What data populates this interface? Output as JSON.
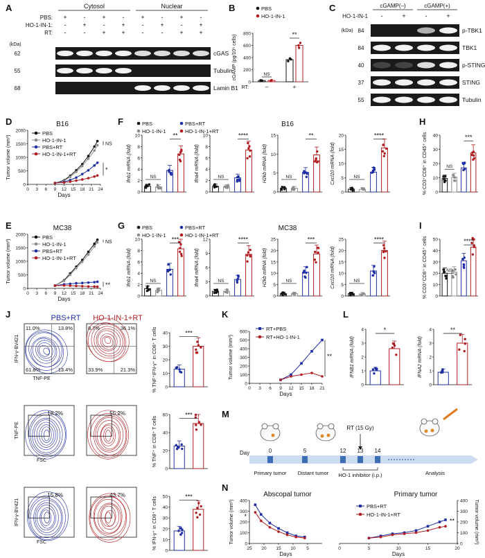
{
  "colors": {
    "pbs": "#111111",
    "ho1": "#8c8c8c",
    "pbsrt": "#1f2fa3",
    "ho1rt": "#b01d21",
    "blot_bg": "#1a1a1a"
  },
  "panel_labels": [
    "A",
    "B",
    "C",
    "D",
    "E",
    "F",
    "G",
    "H",
    "I",
    "J",
    "K",
    "L",
    "M",
    "N"
  ],
  "blotA": {
    "groups": [
      "Cytosol",
      "Nuclear"
    ],
    "rows": [
      {
        "label": "PBS:",
        "signs": [
          "+",
          "-",
          "+",
          "-",
          "+",
          "-",
          "+",
          "-"
        ]
      },
      {
        "label": "HO-1-IN-1:",
        "signs": [
          "-",
          "+",
          "-",
          "+",
          "-",
          "+",
          "-",
          "+"
        ]
      },
      {
        "label": "RT:",
        "signs": [
          "-",
          "-",
          "+",
          "+",
          "-",
          "-",
          "+",
          "+"
        ]
      }
    ],
    "kda_unit": "(kDa)",
    "bands": [
      {
        "kda": "62",
        "name": "cGAS",
        "intensity": [
          1,
          1,
          1,
          1,
          0.9,
          0.9,
          0.9,
          0.9
        ]
      },
      {
        "kda": "55",
        "name": "Tubulin",
        "intensity": [
          1,
          1,
          1,
          1,
          0,
          0,
          0,
          0
        ]
      },
      {
        "kda": "68",
        "name": "Lamin B1",
        "intensity": [
          0,
          0,
          0,
          0,
          1,
          1,
          1,
          1
        ]
      }
    ]
  },
  "blotC": {
    "groups": [
      "cGAMP(–)",
      "cGAMP(+)"
    ],
    "treat_label": "HO-1-IN-1",
    "signs": [
      "-",
      "+",
      "-",
      "+"
    ],
    "kda_unit": "(kDa)",
    "bands": [
      {
        "kda": "84",
        "name": "p-TBK1",
        "intensity": [
          0,
          0,
          0.7,
          1
        ]
      },
      {
        "kda": "84",
        "name": "TBK1",
        "intensity": [
          1,
          1,
          1,
          1
        ]
      },
      {
        "kda": "40",
        "name": "p-STING",
        "intensity": [
          0.2,
          0.2,
          0.9,
          1
        ]
      },
      {
        "kda": "37",
        "name": "STING",
        "intensity": [
          1,
          1,
          1,
          1
        ]
      },
      {
        "kda": "55",
        "name": "Tubulin",
        "intensity": [
          1,
          1,
          1,
          1
        ]
      }
    ]
  },
  "flowJ": {
    "headers": [
      "PBS+RT",
      "HO-1-IN-1+RT"
    ],
    "rows": [
      {
        "ylabel": "IFN-γ-BV421",
        "xlabel": "TNF-PE",
        "quads": [
          [
            "11.0%",
            "13.8%",
            "61.8%",
            "13.4%"
          ],
          [
            "8.7%",
            "36.1%",
            "33.9%",
            "21.3%"
          ]
        ]
      },
      {
        "ylabel": "TNF-PE",
        "xlabel": "FSC",
        "gates": [
          "18.2%",
          "55.2%"
        ]
      },
      {
        "ylabel": "IFN-γ-BV421",
        "xlabel": "FSC",
        "gates": [
          "15.8%",
          "43.7%"
        ]
      }
    ]
  },
  "schemeM": {
    "day_label": "Day",
    "days": [
      "0",
      "5",
      "12",
      "13",
      "14"
    ],
    "rt_label": "RT (15 Gy)",
    "steps": [
      "Primary tumor",
      "Distant tumor",
      "HO-1 inhibitor (i.p.)",
      "Analysis"
    ]
  },
  "chart_data": [
    {
      "id": "B",
      "type": "bar",
      "ylabel": "cGAMP (pg/10⁶ cells)",
      "ylim": [
        0,
        800
      ],
      "yticks": [
        0,
        200,
        400,
        600,
        800
      ],
      "legend": [
        "PBS",
        "HO-1-IN-1"
      ],
      "xaxis_label": "RT:",
      "categories": [
        "–",
        "+"
      ],
      "series": [
        {
          "name": "PBS",
          "values": [
            20,
            365
          ],
          "points": [
            [
              15,
              20,
              25
            ],
            [
              340,
              370,
              385
            ]
          ]
        },
        {
          "name": "HO-1-IN-1",
          "values": [
            22,
            600
          ],
          "points": [
            [
              15,
              22,
              28
            ],
            [
              560,
              600,
              640
            ]
          ]
        }
      ],
      "annotations": [
        "NS",
        "**"
      ]
    },
    {
      "id": "D",
      "type": "line",
      "title": "B16",
      "xlabel": "Days",
      "ylabel": "Tumor volume (mm³)",
      "xlim": [
        0,
        24
      ],
      "ylim": [
        0,
        2000
      ],
      "xticks": [
        0,
        3,
        6,
        9,
        12,
        15,
        18,
        21,
        24
      ],
      "yticks": [
        0,
        500,
        1000,
        1500,
        2000
      ],
      "x": [
        9,
        12,
        14,
        16,
        18,
        20,
        22,
        23
      ],
      "series": [
        {
          "name": "PBS",
          "values": [
            50,
            150,
            320,
            520,
            750,
            1050,
            1400,
            1600
          ]
        },
        {
          "name": "HO-1-IN-1",
          "values": [
            50,
            130,
            280,
            460,
            680,
            950,
            1250,
            1450
          ]
        },
        {
          "name": "PBS+RT",
          "values": [
            50,
            90,
            160,
            250,
            380,
            520,
            700,
            800
          ]
        },
        {
          "name": "HO-1-IN-1+RT",
          "values": [
            50,
            70,
            100,
            140,
            180,
            230,
            290,
            330
          ]
        }
      ],
      "annotations": [
        "NS",
        "*"
      ]
    },
    {
      "id": "E",
      "type": "line",
      "title": "MC38",
      "xlabel": "Days",
      "ylabel": "Tumor volume (mm³)",
      "xlim": [
        0,
        24
      ],
      "ylim": [
        0,
        2000
      ],
      "xticks": [
        0,
        3,
        6,
        9,
        12,
        15,
        18,
        21,
        24
      ],
      "yticks": [
        0,
        500,
        1000,
        1500,
        2000
      ],
      "x": [
        9,
        12,
        14,
        16,
        18,
        20,
        22,
        23
      ],
      "series": [
        {
          "name": "PBS",
          "values": [
            100,
            300,
            550,
            800,
            1050,
            1350,
            1650,
            1800
          ]
        },
        {
          "name": "HO-1-IN-1",
          "values": [
            100,
            280,
            500,
            750,
            980,
            1250,
            1550,
            1700
          ]
        },
        {
          "name": "PBS+RT",
          "values": [
            100,
            150,
            170,
            190,
            200,
            215,
            230,
            245
          ]
        },
        {
          "name": "HO-1-IN-1+RT",
          "values": [
            100,
            110,
            100,
            90,
            80,
            70,
            65,
            60
          ]
        }
      ],
      "annotations": [
        "NS",
        "**"
      ]
    },
    {
      "id": "F",
      "type": "bar",
      "title": "B16",
      "legend": [
        "PBS",
        "HO-1-IN-1",
        "PBS+RT",
        "HO-1-IN-1+RT"
      ],
      "subplots": [
        {
          "ylabel": "Ifnb1 mRNA (fold)",
          "ylim": [
            0,
            10
          ],
          "yticks": [
            0,
            2,
            4,
            6,
            8,
            10
          ],
          "values": [
            1,
            0.9,
            3.8,
            6.7
          ],
          "annotations": [
            "NS",
            "**"
          ]
        },
        {
          "ylabel": "Ifna4 mRNA (fold)",
          "ylim": [
            0,
            10
          ],
          "yticks": [
            0,
            2,
            4,
            6,
            8,
            10
          ],
          "values": [
            1,
            0.9,
            2.5,
            7.4
          ],
          "annotations": [
            "NS",
            "****"
          ]
        },
        {
          "ylabel": "H2kb mRNA (fold)",
          "ylim": [
            0,
            15
          ],
          "yticks": [
            0,
            5,
            10,
            15
          ],
          "values": [
            1,
            1,
            5.2,
            9.8
          ],
          "annotations": [
            "NS",
            "**"
          ]
        },
        {
          "ylabel": "Cxcl10 mRNA (fold)",
          "ylim": [
            0,
            20
          ],
          "yticks": [
            0,
            5,
            10,
            15,
            20
          ],
          "values": [
            1,
            0.9,
            7,
            15.5
          ],
          "annotations": [
            "NS",
            "****"
          ]
        }
      ]
    },
    {
      "id": "G",
      "type": "bar",
      "title": "MC38",
      "legend": [
        "PBS",
        "HO-1-IN-1",
        "PBS+RT",
        "HO-1-IN-1+RT"
      ],
      "subplots": [
        {
          "ylabel": "Ifnb1 mRNA (fold)",
          "ylim": [
            0,
            10
          ],
          "yticks": [
            0,
            2,
            4,
            6,
            8,
            10
          ],
          "values": [
            1.3,
            1,
            4.7,
            8.3
          ],
          "annotations": [
            "NS",
            "***"
          ]
        },
        {
          "ylabel": "Ifna4 mRNA (fold)",
          "ylim": [
            0,
            12
          ],
          "yticks": [
            0,
            3,
            6,
            9,
            12
          ],
          "values": [
            1,
            1,
            3.5,
            8.8
          ],
          "annotations": [
            "NS",
            "****"
          ]
        },
        {
          "ylabel": "H2kb mRNA (fold)",
          "ylim": [
            0,
            25
          ],
          "yticks": [
            0,
            5,
            10,
            15,
            20,
            25
          ],
          "values": [
            1,
            1,
            10.5,
            18.5
          ],
          "annotations": [
            "NS",
            "***"
          ]
        },
        {
          "ylabel": "Cxcl10 mRNA (fold)",
          "ylim": [
            0,
            25
          ],
          "yticks": [
            0,
            5,
            10,
            15,
            20,
            25
          ],
          "values": [
            1,
            0.9,
            11,
            20
          ],
          "annotations": [
            "NS",
            "****"
          ]
        }
      ]
    },
    {
      "id": "H",
      "type": "bar",
      "ylabel": "% CD3⁺CD8⁺ in CD45⁺ cells",
      "ylim": [
        0,
        40
      ],
      "yticks": [
        0,
        10,
        20,
        30,
        40
      ],
      "values": [
        9.5,
        10.5,
        17,
        27.5
      ],
      "annotations": [
        "NS",
        "***"
      ]
    },
    {
      "id": "I",
      "type": "bar",
      "ylabel": "% CD3⁺CD8⁺ in CD45⁺ cells",
      "ylim": [
        0,
        50
      ],
      "yticks": [
        0,
        10,
        20,
        30,
        40,
        50
      ],
      "values": [
        20,
        21,
        31,
        43
      ],
      "annotations": [
        "NS",
        "****"
      ]
    },
    {
      "id": "J1",
      "type": "bar",
      "ylabel": "% TNF⁺IFN-γ⁺ in CD8⁺ T cells",
      "ylim": [
        0,
        40
      ],
      "yticks": [
        0,
        10,
        20,
        30,
        40
      ],
      "values": [
        13,
        30
      ],
      "annotations": [
        "***"
      ]
    },
    {
      "id": "J2",
      "type": "bar",
      "ylabel": "% TNF⁺ in CD8⁺ T cells",
      "ylim": [
        0,
        60
      ],
      "yticks": [
        0,
        20,
        40,
        60
      ],
      "values": [
        25,
        50
      ],
      "annotations": [
        "***"
      ]
    },
    {
      "id": "J3",
      "type": "bar",
      "ylabel": "% IFN-γ⁺ in CD8⁺ T cells",
      "ylim": [
        0,
        50
      ],
      "yticks": [
        0,
        10,
        20,
        30,
        40,
        50
      ],
      "values": [
        18,
        38
      ],
      "annotations": [
        "***"
      ]
    },
    {
      "id": "K",
      "type": "line",
      "xlabel": "Days",
      "ylabel": "Tumor volume (mm³)",
      "xlim": [
        0,
        21
      ],
      "ylim": [
        0,
        600
      ],
      "xticks": [
        0,
        3,
        6,
        9,
        12,
        15,
        18,
        21
      ],
      "yticks": [
        0,
        100,
        200,
        300,
        400,
        500,
        600
      ],
      "x": [
        9,
        12,
        15,
        18,
        21
      ],
      "series": [
        {
          "name": "RT+PBS",
          "values": [
            40,
            100,
            230,
            370,
            500
          ]
        },
        {
          "name": "RT+HO-1-IN-1",
          "values": [
            40,
            80,
            100,
            120,
            80
          ]
        }
      ],
      "annotations": [
        "**"
      ]
    },
    {
      "id": "L",
      "type": "bar",
      "subplots": [
        {
          "ylabel": "IFNB1 mRNA (fold)",
          "ylim": [
            0,
            4
          ],
          "yticks": [
            0,
            1,
            2,
            3,
            4
          ],
          "values": [
            1,
            2.6
          ],
          "annotations": [
            "*"
          ]
        },
        {
          "ylabel": "IFNA2 mRNA (fold)",
          "ylim": [
            0,
            4
          ],
          "yticks": [
            0,
            1,
            2,
            3,
            4
          ],
          "values": [
            0.9,
            3
          ],
          "annotations": [
            "**"
          ]
        }
      ]
    },
    {
      "id": "N",
      "type": "line",
      "legend": [
        "PBS+RT",
        "HO-1-IN-1+RT"
      ],
      "subplots": [
        {
          "title": "Abscopal tumor",
          "xlabel": "Days",
          "ylabel": "Tumor volume (mm³)",
          "xlim": [
            25,
            0
          ],
          "ylim": [
            0,
            400
          ],
          "xticks": [
            25,
            20,
            15,
            10,
            5
          ],
          "yticks": [
            0,
            100,
            200,
            300,
            400
          ],
          "x": [
            23,
            21,
            18,
            15,
            12,
            9,
            6
          ],
          "series": [
            {
              "name": "PBS+RT",
              "values": [
                360,
                270,
                190,
                140,
                100,
                70,
                60
              ]
            },
            {
              "name": "HO-1-IN-1+RT",
              "values": [
                290,
                210,
                150,
                110,
                80,
                60,
                50
              ]
            }
          ],
          "annotations": [
            "*"
          ]
        },
        {
          "title": "Primary tumor",
          "xlabel": "Days",
          "ylabel": "Tumor volume (mm³)",
          "xlim": [
            0,
            20
          ],
          "ylim": [
            0,
            400
          ],
          "xticks": [
            0,
            5,
            10,
            15,
            20
          ],
          "yticks": [
            0,
            100,
            200,
            300,
            400
          ],
          "x": [
            5,
            7,
            9,
            11,
            13,
            15,
            17,
            18
          ],
          "series": [
            {
              "name": "PBS+RT",
              "values": [
                50,
                70,
                90,
                100,
                120,
                160,
                200,
                220
              ]
            },
            {
              "name": "HO-1-IN-1+RT",
              "values": [
                50,
                60,
                80,
                90,
                100,
                120,
                150,
                160
              ]
            }
          ],
          "annotations": [
            "**"
          ]
        }
      ]
    }
  ]
}
